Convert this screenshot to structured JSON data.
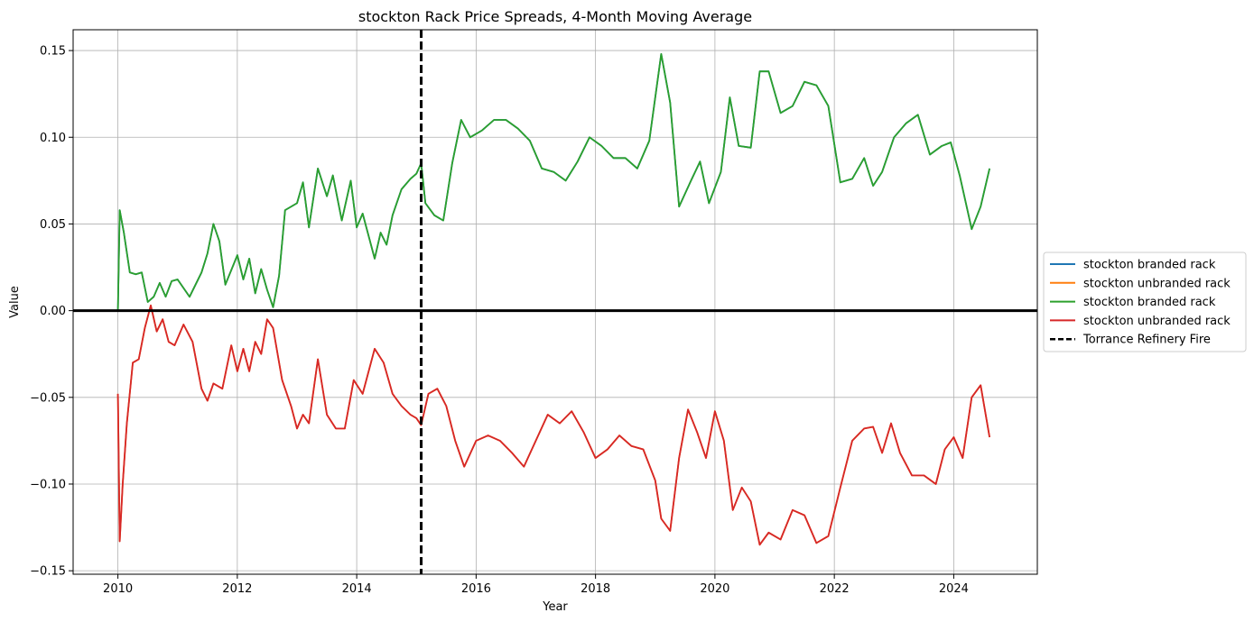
{
  "chart_data": {
    "type": "line",
    "title": "stockton Rack Price Spreads, 4-Month Moving Average",
    "xlabel": "Year",
    "ylabel": "Value",
    "xlim": [
      2009.25,
      2025.4
    ],
    "ylim": [
      -0.152,
      0.162
    ],
    "xticks": [
      2010,
      2012,
      2014,
      2016,
      2018,
      2020,
      2022,
      2024
    ],
    "xtick_labels": [
      "2010",
      "2012",
      "2014",
      "2016",
      "2018",
      "2020",
      "2022",
      "2024"
    ],
    "yticks": [
      -0.15,
      -0.1,
      -0.05,
      0.0,
      0.05,
      0.1,
      0.15
    ],
    "ytick_labels": [
      "−0.15",
      "−0.10",
      "−0.05",
      "0.00",
      "0.05",
      "0.10",
      "0.15"
    ],
    "grid": true,
    "legend_position": "center-right outside",
    "hline": {
      "y": 0,
      "color": "#000000"
    },
    "vline": {
      "x": 2015.08,
      "name": "Torrance Refinery Fire",
      "color": "#000000",
      "style": "dashed"
    },
    "series": [
      {
        "name": "stockton branded rack",
        "color": "#1f77b4",
        "x": [
          2010.0,
          2010.03,
          2010.1,
          2010.2,
          2010.3,
          2010.4,
          2010.5,
          2010.6,
          2010.7,
          2010.8,
          2010.9,
          2011.0,
          2011.2,
          2011.4,
          2011.5,
          2011.6,
          2011.7,
          2011.8,
          2012.0,
          2012.1,
          2012.2,
          2012.3,
          2012.4,
          2012.5,
          2012.6,
          2012.7,
          2012.8,
          2013.0,
          2013.1,
          2013.2,
          2013.35,
          2013.5,
          2013.6,
          2013.75,
          2013.9,
          2014.0,
          2014.1,
          2014.3,
          2014.4,
          2014.5,
          2014.6,
          2014.75,
          2014.9,
          2015.0,
          2015.08,
          2015.15,
          2015.3,
          2015.45,
          2015.6,
          2015.75,
          2015.9,
          2016.1,
          2016.3,
          2016.5,
          2016.7,
          2016.9,
          2017.1,
          2017.3,
          2017.5,
          2017.7,
          2017.9,
          2018.1,
          2018.3,
          2018.5,
          2018.7,
          2018.9,
          2019.1,
          2019.25,
          2019.4,
          2019.6,
          2019.75,
          2019.9,
          2020.1,
          2020.25,
          2020.4,
          2020.6,
          2020.75,
          2020.9,
          2021.1,
          2021.3,
          2021.5,
          2021.7,
          2021.9,
          2022.1,
          2022.3,
          2022.5,
          2022.65,
          2022.8,
          2023.0,
          2023.2,
          2023.4,
          2023.6,
          2023.8,
          2023.95,
          2024.1,
          2024.3,
          2024.45,
          2024.6
        ],
        "values": [
          0.0,
          0.058,
          0.045,
          0.022,
          0.021,
          0.022,
          0.005,
          0.008,
          0.016,
          0.008,
          0.017,
          0.018,
          0.008,
          0.022,
          0.033,
          0.05,
          0.04,
          0.015,
          0.032,
          0.018,
          0.03,
          0.01,
          0.024,
          0.012,
          0.002,
          0.02,
          0.058,
          0.062,
          0.074,
          0.048,
          0.082,
          0.066,
          0.078,
          0.052,
          0.075,
          0.048,
          0.056,
          0.03,
          0.045,
          0.038,
          0.055,
          0.07,
          0.076,
          0.079,
          0.085,
          0.062,
          0.055,
          0.052,
          0.085,
          0.11,
          0.1,
          0.104,
          0.11,
          0.11,
          0.105,
          0.098,
          0.082,
          0.08,
          0.075,
          0.086,
          0.1,
          0.095,
          0.088,
          0.088,
          0.082,
          0.098,
          0.148,
          0.12,
          0.06,
          0.075,
          0.086,
          0.062,
          0.08,
          0.123,
          0.095,
          0.094,
          0.138,
          0.138,
          0.114,
          0.118,
          0.132,
          0.13,
          0.118,
          0.074,
          0.076,
          0.088,
          0.072,
          0.08,
          0.1,
          0.108,
          0.113,
          0.09,
          0.095,
          0.097,
          0.078,
          0.047,
          0.06,
          0.082
        ]
      },
      {
        "name": "stockton unbranded rack",
        "color": "#ff7f0e",
        "x": [
          2010.0,
          2010.03,
          2010.08,
          2010.15,
          2010.25,
          2010.35,
          2010.45,
          2010.55,
          2010.65,
          2010.75,
          2010.85,
          2010.95,
          2011.1,
          2011.25,
          2011.4,
          2011.5,
          2011.6,
          2011.75,
          2011.9,
          2012.0,
          2012.1,
          2012.2,
          2012.3,
          2012.4,
          2012.5,
          2012.6,
          2012.75,
          2012.9,
          2013.0,
          2013.1,
          2013.2,
          2013.35,
          2013.5,
          2013.65,
          2013.8,
          2013.95,
          2014.1,
          2014.3,
          2014.45,
          2014.6,
          2014.75,
          2014.9,
          2015.0,
          2015.08,
          2015.2,
          2015.35,
          2015.5,
          2015.65,
          2015.8,
          2016.0,
          2016.2,
          2016.4,
          2016.6,
          2016.8,
          2017.0,
          2017.2,
          2017.4,
          2017.6,
          2017.8,
          2018.0,
          2018.2,
          2018.4,
          2018.6,
          2018.8,
          2019.0,
          2019.1,
          2019.25,
          2019.4,
          2019.55,
          2019.7,
          2019.85,
          2020.0,
          2020.15,
          2020.3,
          2020.45,
          2020.6,
          2020.75,
          2020.9,
          2021.1,
          2021.3,
          2021.5,
          2021.7,
          2021.9,
          2022.1,
          2022.3,
          2022.5,
          2022.65,
          2022.8,
          2022.95,
          2023.1,
          2023.3,
          2023.5,
          2023.7,
          2023.85,
          2024.0,
          2024.15,
          2024.3,
          2024.45,
          2024.6
        ],
        "values": [
          -0.048,
          -0.133,
          -0.1,
          -0.065,
          -0.03,
          -0.028,
          -0.01,
          0.003,
          -0.012,
          -0.005,
          -0.018,
          -0.02,
          -0.008,
          -0.018,
          -0.045,
          -0.052,
          -0.042,
          -0.045,
          -0.02,
          -0.035,
          -0.022,
          -0.035,
          -0.018,
          -0.025,
          -0.005,
          -0.01,
          -0.04,
          -0.055,
          -0.068,
          -0.06,
          -0.065,
          -0.028,
          -0.06,
          -0.068,
          -0.068,
          -0.04,
          -0.048,
          -0.022,
          -0.03,
          -0.048,
          -0.055,
          -0.06,
          -0.062,
          -0.066,
          -0.048,
          -0.045,
          -0.055,
          -0.075,
          -0.09,
          -0.075,
          -0.072,
          -0.075,
          -0.082,
          -0.09,
          -0.075,
          -0.06,
          -0.065,
          -0.058,
          -0.07,
          -0.085,
          -0.08,
          -0.072,
          -0.078,
          -0.08,
          -0.098,
          -0.12,
          -0.127,
          -0.085,
          -0.057,
          -0.07,
          -0.085,
          -0.058,
          -0.075,
          -0.115,
          -0.102,
          -0.11,
          -0.135,
          -0.128,
          -0.132,
          -0.115,
          -0.118,
          -0.134,
          -0.13,
          -0.102,
          -0.075,
          -0.068,
          -0.067,
          -0.082,
          -0.065,
          -0.082,
          -0.095,
          -0.095,
          -0.1,
          -0.08,
          -0.073,
          -0.085,
          -0.05,
          -0.043,
          -0.073
        ]
      },
      {
        "name": "stockton branded rack",
        "color": "#2ca02c",
        "x": [
          2010.0,
          2010.03,
          2010.1,
          2010.2,
          2010.3,
          2010.4,
          2010.5,
          2010.6,
          2010.7,
          2010.8,
          2010.9,
          2011.0,
          2011.2,
          2011.4,
          2011.5,
          2011.6,
          2011.7,
          2011.8,
          2012.0,
          2012.1,
          2012.2,
          2012.3,
          2012.4,
          2012.5,
          2012.6,
          2012.7,
          2012.8,
          2013.0,
          2013.1,
          2013.2,
          2013.35,
          2013.5,
          2013.6,
          2013.75,
          2013.9,
          2014.0,
          2014.1,
          2014.3,
          2014.4,
          2014.5,
          2014.6,
          2014.75,
          2014.9,
          2015.0,
          2015.08,
          2015.15,
          2015.3,
          2015.45,
          2015.6,
          2015.75,
          2015.9,
          2016.1,
          2016.3,
          2016.5,
          2016.7,
          2016.9,
          2017.1,
          2017.3,
          2017.5,
          2017.7,
          2017.9,
          2018.1,
          2018.3,
          2018.5,
          2018.7,
          2018.9,
          2019.1,
          2019.25,
          2019.4,
          2019.6,
          2019.75,
          2019.9,
          2020.1,
          2020.25,
          2020.4,
          2020.6,
          2020.75,
          2020.9,
          2021.1,
          2021.3,
          2021.5,
          2021.7,
          2021.9,
          2022.1,
          2022.3,
          2022.5,
          2022.65,
          2022.8,
          2023.0,
          2023.2,
          2023.4,
          2023.6,
          2023.8,
          2023.95,
          2024.1,
          2024.3,
          2024.45,
          2024.6
        ],
        "values": [
          0.0,
          0.058,
          0.045,
          0.022,
          0.021,
          0.022,
          0.005,
          0.008,
          0.016,
          0.008,
          0.017,
          0.018,
          0.008,
          0.022,
          0.033,
          0.05,
          0.04,
          0.015,
          0.032,
          0.018,
          0.03,
          0.01,
          0.024,
          0.012,
          0.002,
          0.02,
          0.058,
          0.062,
          0.074,
          0.048,
          0.082,
          0.066,
          0.078,
          0.052,
          0.075,
          0.048,
          0.056,
          0.03,
          0.045,
          0.038,
          0.055,
          0.07,
          0.076,
          0.079,
          0.085,
          0.062,
          0.055,
          0.052,
          0.085,
          0.11,
          0.1,
          0.104,
          0.11,
          0.11,
          0.105,
          0.098,
          0.082,
          0.08,
          0.075,
          0.086,
          0.1,
          0.095,
          0.088,
          0.088,
          0.082,
          0.098,
          0.148,
          0.12,
          0.06,
          0.075,
          0.086,
          0.062,
          0.08,
          0.123,
          0.095,
          0.094,
          0.138,
          0.138,
          0.114,
          0.118,
          0.132,
          0.13,
          0.118,
          0.074,
          0.076,
          0.088,
          0.072,
          0.08,
          0.1,
          0.108,
          0.113,
          0.09,
          0.095,
          0.097,
          0.078,
          0.047,
          0.06,
          0.082
        ]
      },
      {
        "name": "stockton unbranded rack",
        "color": "#d62728",
        "x": [
          2010.0,
          2010.03,
          2010.08,
          2010.15,
          2010.25,
          2010.35,
          2010.45,
          2010.55,
          2010.65,
          2010.75,
          2010.85,
          2010.95,
          2011.1,
          2011.25,
          2011.4,
          2011.5,
          2011.6,
          2011.75,
          2011.9,
          2012.0,
          2012.1,
          2012.2,
          2012.3,
          2012.4,
          2012.5,
          2012.6,
          2012.75,
          2012.9,
          2013.0,
          2013.1,
          2013.2,
          2013.35,
          2013.5,
          2013.65,
          2013.8,
          2013.95,
          2014.1,
          2014.3,
          2014.45,
          2014.6,
          2014.75,
          2014.9,
          2015.0,
          2015.08,
          2015.2,
          2015.35,
          2015.5,
          2015.65,
          2015.8,
          2016.0,
          2016.2,
          2016.4,
          2016.6,
          2016.8,
          2017.0,
          2017.2,
          2017.4,
          2017.6,
          2017.8,
          2018.0,
          2018.2,
          2018.4,
          2018.6,
          2018.8,
          2019.0,
          2019.1,
          2019.25,
          2019.4,
          2019.55,
          2019.7,
          2019.85,
          2020.0,
          2020.15,
          2020.3,
          2020.45,
          2020.6,
          2020.75,
          2020.9,
          2021.1,
          2021.3,
          2021.5,
          2021.7,
          2021.9,
          2022.1,
          2022.3,
          2022.5,
          2022.65,
          2022.8,
          2022.95,
          2023.1,
          2023.3,
          2023.5,
          2023.7,
          2023.85,
          2024.0,
          2024.15,
          2024.3,
          2024.45,
          2024.6
        ],
        "values": [
          -0.048,
          -0.133,
          -0.1,
          -0.065,
          -0.03,
          -0.028,
          -0.01,
          0.003,
          -0.012,
          -0.005,
          -0.018,
          -0.02,
          -0.008,
          -0.018,
          -0.045,
          -0.052,
          -0.042,
          -0.045,
          -0.02,
          -0.035,
          -0.022,
          -0.035,
          -0.018,
          -0.025,
          -0.005,
          -0.01,
          -0.04,
          -0.055,
          -0.068,
          -0.06,
          -0.065,
          -0.028,
          -0.06,
          -0.068,
          -0.068,
          -0.04,
          -0.048,
          -0.022,
          -0.03,
          -0.048,
          -0.055,
          -0.06,
          -0.062,
          -0.066,
          -0.048,
          -0.045,
          -0.055,
          -0.075,
          -0.09,
          -0.075,
          -0.072,
          -0.075,
          -0.082,
          -0.09,
          -0.075,
          -0.06,
          -0.065,
          -0.058,
          -0.07,
          -0.085,
          -0.08,
          -0.072,
          -0.078,
          -0.08,
          -0.098,
          -0.12,
          -0.127,
          -0.085,
          -0.057,
          -0.07,
          -0.085,
          -0.058,
          -0.075,
          -0.115,
          -0.102,
          -0.11,
          -0.135,
          -0.128,
          -0.132,
          -0.115,
          -0.118,
          -0.134,
          -0.13,
          -0.102,
          -0.075,
          -0.068,
          -0.067,
          -0.082,
          -0.065,
          -0.082,
          -0.095,
          -0.095,
          -0.1,
          -0.08,
          -0.073,
          -0.085,
          -0.05,
          -0.043,
          -0.073
        ]
      }
    ],
    "legend": [
      {
        "label": "stockton branded rack",
        "color": "#1f77b4",
        "style": "solid"
      },
      {
        "label": "stockton unbranded rack",
        "color": "#ff7f0e",
        "style": "solid"
      },
      {
        "label": "stockton branded rack",
        "color": "#2ca02c",
        "style": "solid"
      },
      {
        "label": "stockton unbranded rack",
        "color": "#d62728",
        "style": "solid"
      },
      {
        "label": "Torrance Refinery Fire",
        "color": "#000000",
        "style": "dashed"
      }
    ]
  }
}
